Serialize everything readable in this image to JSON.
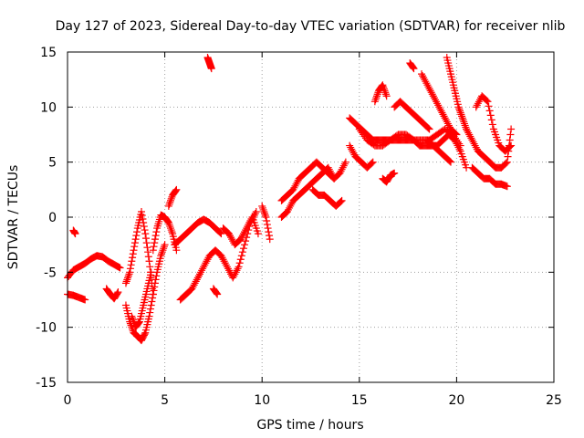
{
  "chart_data": {
    "type": "scatter",
    "title": "Day 127 of 2023, Sidereal Day-to-day VTEC variation (SDTVAR) for receiver nlib",
    "xlabel": "GPS time / hours",
    "ylabel": "SDTVAR / TECUs",
    "xlim": [
      0,
      25
    ],
    "ylim": [
      -15,
      15
    ],
    "xticks": [
      0,
      5,
      10,
      15,
      20,
      25
    ],
    "yticks": [
      -15,
      -10,
      -5,
      0,
      5,
      10,
      15
    ],
    "grid": true,
    "marker": "plus",
    "color": "#ff0000",
    "series": [
      {
        "name": "s1",
        "x": [
          0.0,
          0.3,
          0.6,
          0.9,
          1.2,
          1.5,
          1.8,
          2.1,
          2.4,
          2.7
        ],
        "y": [
          -5.5,
          -4.8,
          -4.5,
          -4.2,
          -3.8,
          -3.5,
          -3.6,
          -4.0,
          -4.3,
          -4.6
        ]
      },
      {
        "name": "s2",
        "x": [
          0.0,
          0.3,
          0.6,
          0.9
        ],
        "y": [
          -7.0,
          -7.1,
          -7.3,
          -7.5
        ]
      },
      {
        "name": "s3",
        "x": [
          0.3,
          0.4
        ],
        "y": [
          -1.2,
          -1.5
        ]
      },
      {
        "name": "s4",
        "x": [
          2.0,
          2.2,
          2.4,
          2.6
        ],
        "y": [
          -6.5,
          -7.0,
          -7.4,
          -6.8
        ]
      },
      {
        "name": "s5",
        "x": [
          3.0,
          3.2,
          3.4,
          3.6,
          3.8,
          4.0,
          4.2,
          4.4,
          4.6,
          4.8,
          5.0
        ],
        "y": [
          -8.0,
          -9.5,
          -10.5,
          -10.8,
          -11.2,
          -10.5,
          -9.0,
          -7.0,
          -5.0,
          -3.5,
          -2.5
        ]
      },
      {
        "name": "s6",
        "x": [
          3.0,
          3.2,
          3.4,
          3.6,
          3.8,
          4.0,
          4.2,
          4.4
        ],
        "y": [
          -6.0,
          -5.0,
          -3.0,
          -1.0,
          0.5,
          -1.5,
          -4.0,
          -7.0
        ]
      },
      {
        "name": "s7",
        "x": [
          3.3,
          3.5,
          3.7,
          3.9,
          4.1,
          4.3
        ],
        "y": [
          -9.0,
          -10.0,
          -9.5,
          -8.0,
          -6.5,
          -5.0
        ]
      },
      {
        "name": "s8",
        "x": [
          4.4,
          4.6,
          4.8,
          5.0,
          5.2,
          5.4,
          5.6
        ],
        "y": [
          -3.0,
          -1.0,
          0.2,
          0.0,
          -0.5,
          -1.5,
          -3.0
        ]
      },
      {
        "name": "s9",
        "x": [
          5.2,
          5.4,
          5.6
        ],
        "y": [
          1.0,
          2.0,
          2.5
        ]
      },
      {
        "name": "s10",
        "x": [
          5.5,
          5.8,
          6.1,
          6.4,
          6.7,
          7.0,
          7.3,
          7.6,
          7.9
        ],
        "y": [
          -2.5,
          -2.0,
          -1.5,
          -1.0,
          -0.5,
          -0.2,
          -0.5,
          -1.0,
          -1.5
        ]
      },
      {
        "name": "s11",
        "x": [
          5.8,
          6.1,
          6.4,
          6.7,
          7.0,
          7.3,
          7.6,
          7.9,
          8.2,
          8.5,
          8.8,
          9.1,
          9.4,
          9.7
        ],
        "y": [
          -7.5,
          -7.0,
          -6.5,
          -5.5,
          -4.5,
          -3.5,
          -3.0,
          -3.5,
          -4.5,
          -5.5,
          -4.5,
          -2.5,
          -0.5,
          0.5
        ]
      },
      {
        "name": "s12",
        "x": [
          7.5,
          7.7
        ],
        "y": [
          -6.5,
          -7.0
        ]
      },
      {
        "name": "s13",
        "x": [
          7.2,
          7.3,
          7.4
        ],
        "y": [
          14.5,
          14.0,
          13.5
        ]
      },
      {
        "name": "s14",
        "x": [
          8.0,
          8.3,
          8.6,
          8.9,
          9.2,
          9.5,
          9.8
        ],
        "y": [
          -1.0,
          -1.5,
          -2.5,
          -2.0,
          -1.0,
          0.0,
          -1.5
        ]
      },
      {
        "name": "s15",
        "x": [
          10.0,
          10.2,
          10.4
        ],
        "y": [
          1.0,
          0.0,
          -2.0
        ]
      },
      {
        "name": "s16",
        "x": [
          11.0,
          11.3,
          11.6,
          11.9,
          12.2,
          12.5,
          12.8,
          13.1,
          13.4,
          13.7,
          14.0,
          14.3
        ],
        "y": [
          0.0,
          0.5,
          1.5,
          2.0,
          2.5,
          3.0,
          3.5,
          4.0,
          4.5,
          3.5,
          4.0,
          5.0
        ]
      },
      {
        "name": "s17",
        "x": [
          11.0,
          11.3,
          11.6,
          11.9,
          12.2,
          12.5,
          12.8,
          13.1,
          13.4,
          13.7
        ],
        "y": [
          1.5,
          2.0,
          2.5,
          3.5,
          4.0,
          4.5,
          5.0,
          4.5,
          4.0,
          3.5
        ]
      },
      {
        "name": "s18",
        "x": [
          12.6,
          12.9,
          13.2,
          13.5,
          13.8,
          14.1
        ],
        "y": [
          2.5,
          2.0,
          2.0,
          1.5,
          1.0,
          1.5
        ]
      },
      {
        "name": "s19",
        "x": [
          14.5,
          14.8,
          15.1,
          15.4,
          15.7
        ],
        "y": [
          6.5,
          5.5,
          5.0,
          4.5,
          5.0
        ]
      },
      {
        "name": "s20",
        "x": [
          14.5,
          14.8,
          15.1,
          15.4,
          15.7,
          16.0,
          16.3,
          16.6,
          16.9,
          17.2,
          17.5,
          17.8,
          18.1,
          18.4,
          18.7,
          19.0,
          19.3,
          19.6,
          19.9,
          20.2,
          20.5
        ],
        "y": [
          9.0,
          8.5,
          8.0,
          7.5,
          7.0,
          7.0,
          7.0,
          7.0,
          7.0,
          7.0,
          7.0,
          7.0,
          6.5,
          6.5,
          6.5,
          6.5,
          7.0,
          7.5,
          7.0,
          6.0,
          4.5
        ]
      },
      {
        "name": "s21",
        "x": [
          15.0,
          15.4,
          15.8,
          16.2,
          16.6,
          17.0,
          17.4,
          17.8,
          18.2,
          18.6,
          19.0,
          19.4,
          19.8,
          20.2
        ],
        "y": [
          8.0,
          7.0,
          6.5,
          6.5,
          7.0,
          7.5,
          7.5,
          7.0,
          7.0,
          7.0,
          7.5,
          8.0,
          7.5,
          6.5
        ]
      },
      {
        "name": "s22",
        "x": [
          15.8,
          16.0,
          16.2,
          16.4
        ],
        "y": [
          10.5,
          11.5,
          12.0,
          11.0
        ]
      },
      {
        "name": "s23",
        "x": [
          16.2,
          16.4,
          16.6,
          16.8
        ],
        "y": [
          3.5,
          3.2,
          3.8,
          4.0
        ]
      },
      {
        "name": "s24",
        "x": [
          16.8,
          17.1,
          17.4,
          17.7,
          18.0,
          18.3,
          18.6
        ],
        "y": [
          10.0,
          10.5,
          10.0,
          9.5,
          9.0,
          8.5,
          8.0
        ]
      },
      {
        "name": "s25",
        "x": [
          17.6,
          17.8
        ],
        "y": [
          14.0,
          13.5
        ]
      },
      {
        "name": "s26",
        "x": [
          18.2,
          18.5,
          18.8,
          19.1,
          19.4,
          19.7,
          20.0
        ],
        "y": [
          13.0,
          12.0,
          11.0,
          10.0,
          9.0,
          8.0,
          7.5
        ]
      },
      {
        "name": "s27",
        "x": [
          18.5,
          18.8,
          19.1,
          19.4,
          19.7
        ],
        "y": [
          7.0,
          6.5,
          6.0,
          5.5,
          5.0
        ]
      },
      {
        "name": "s28",
        "x": [
          19.5,
          19.7,
          19.9,
          20.1,
          20.3,
          20.5
        ],
        "y": [
          14.5,
          13.0,
          11.5,
          10.0,
          9.0,
          8.0
        ]
      },
      {
        "name": "s29",
        "x": [
          20.5,
          20.8,
          21.1,
          21.4,
          21.7,
          22.0,
          22.3,
          22.6,
          22.8
        ],
        "y": [
          8.0,
          7.0,
          6.0,
          5.5,
          5.0,
          4.5,
          4.5,
          5.0,
          8.0
        ]
      },
      {
        "name": "s30",
        "x": [
          20.8,
          21.1,
          21.4,
          21.7,
          22.0,
          22.3,
          22.6
        ],
        "y": [
          4.5,
          4.0,
          3.5,
          3.5,
          3.0,
          3.0,
          2.8
        ]
      },
      {
        "name": "s31",
        "x": [
          21.0,
          21.3,
          21.6,
          21.9,
          22.2,
          22.5,
          22.8
        ],
        "y": [
          10.0,
          11.0,
          10.5,
          8.0,
          6.5,
          6.0,
          6.5
        ]
      }
    ]
  }
}
